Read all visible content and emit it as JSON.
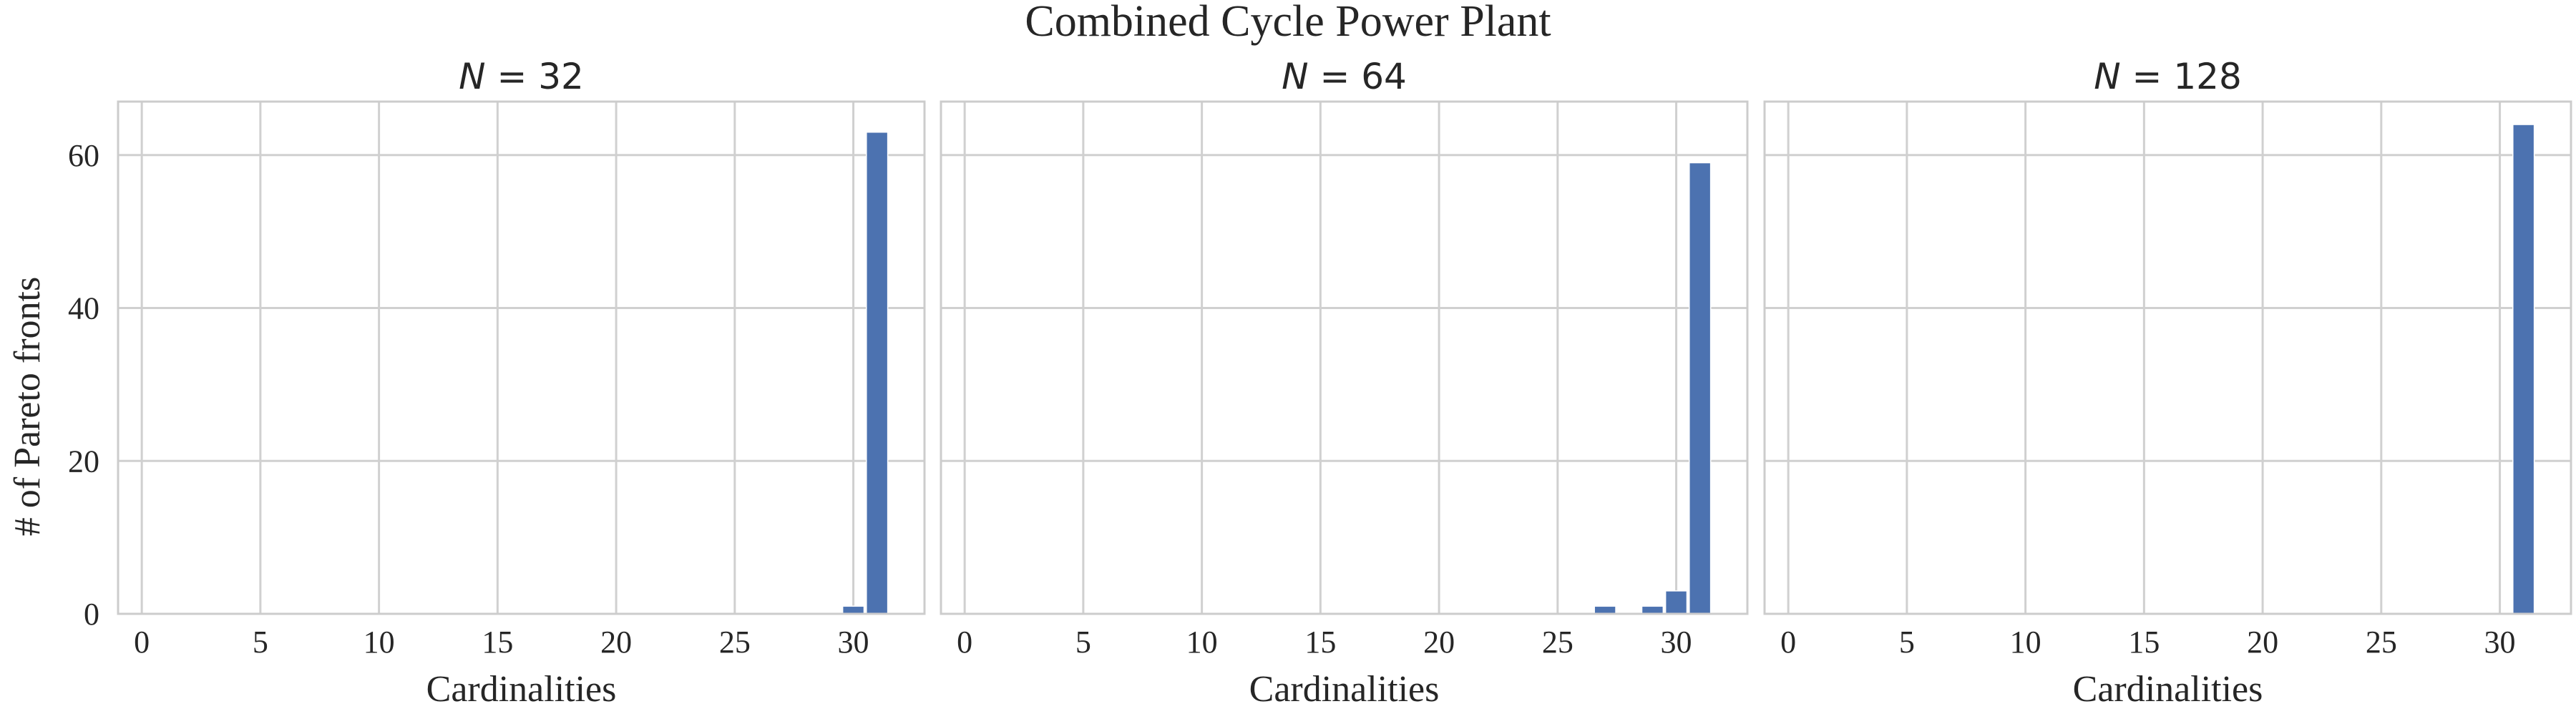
{
  "chart_data": {
    "type": "bar",
    "suptitle": "Combined Cycle Power Plant",
    "ylabel": "# of Pareto fronts",
    "xlabel": "Cardinalities",
    "xlim": [
      -1,
      33
    ],
    "ylim": [
      0,
      67
    ],
    "xticks": [
      0,
      5,
      10,
      15,
      20,
      25,
      30
    ],
    "yticks": [
      0,
      20,
      40,
      60
    ],
    "grid": true,
    "bar_color": "#4c72b0",
    "panels": [
      {
        "title_var": "N",
        "title_eq": " = ",
        "title_value": "32",
        "bars": [
          {
            "x": 30,
            "value": 1
          },
          {
            "x": 31,
            "value": 63
          }
        ]
      },
      {
        "title_var": "N",
        "title_eq": " = ",
        "title_value": "64",
        "bars": [
          {
            "x": 27,
            "value": 1
          },
          {
            "x": 29,
            "value": 1
          },
          {
            "x": 30,
            "value": 3
          },
          {
            "x": 31,
            "value": 59
          }
        ]
      },
      {
        "title_var": "N",
        "title_eq": " = ",
        "title_value": "128",
        "bars": [
          {
            "x": 31,
            "value": 64
          }
        ]
      }
    ]
  }
}
